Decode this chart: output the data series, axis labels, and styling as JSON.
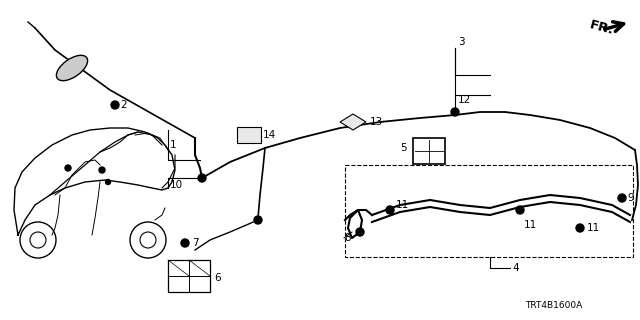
{
  "bg_color": "#ffffff",
  "fig_width": 6.4,
  "fig_height": 3.2,
  "dpi": 100,
  "diagram_code": "TRT4B1600A"
}
